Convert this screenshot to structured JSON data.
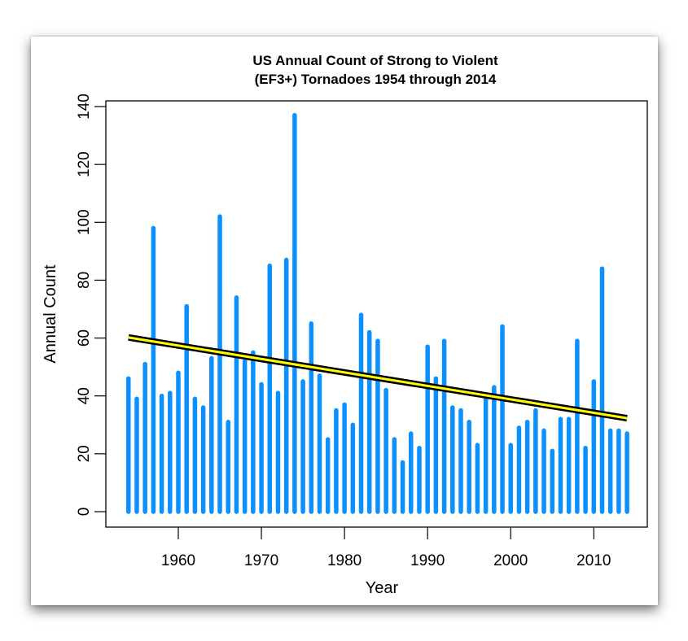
{
  "chart_data": {
    "type": "bar",
    "title": [
      "US Annual Count of Strong to Violent",
      "(EF3+) Tornadoes 1954 through 2014"
    ],
    "xlabel": "Year",
    "ylabel": "Annual Count",
    "xlim": [
      1952,
      2016
    ],
    "ylim": [
      -4,
      143
    ],
    "x_ticks": [
      1960,
      1970,
      1980,
      1990,
      2000,
      2010
    ],
    "y_ticks": [
      0,
      20,
      40,
      60,
      80,
      100,
      120,
      140
    ],
    "grid": false,
    "bar_color": "#0A90FF",
    "x": [
      1954,
      1955,
      1956,
      1957,
      1958,
      1959,
      1960,
      1961,
      1962,
      1963,
      1964,
      1965,
      1966,
      1967,
      1968,
      1969,
      1970,
      1971,
      1972,
      1973,
      1974,
      1975,
      1976,
      1977,
      1978,
      1979,
      1980,
      1981,
      1982,
      1983,
      1984,
      1985,
      1986,
      1987,
      1988,
      1989,
      1990,
      1991,
      1992,
      1993,
      1994,
      1995,
      1996,
      1997,
      1998,
      1999,
      2000,
      2001,
      2002,
      2003,
      2004,
      2005,
      2006,
      2007,
      2008,
      2009,
      2010,
      2011,
      2012,
      2013,
      2014
    ],
    "values": [
      46,
      39,
      51,
      98,
      40,
      41,
      48,
      71,
      39,
      36,
      53,
      102,
      31,
      74,
      52,
      55,
      44,
      85,
      41,
      87,
      137,
      45,
      65,
      47,
      25,
      35,
      37,
      30,
      68,
      62,
      59,
      42,
      25,
      17,
      27,
      22,
      57,
      46,
      59,
      36,
      35,
      31,
      23,
      39,
      43,
      64,
      23,
      29,
      31,
      35,
      28,
      21,
      32,
      32,
      59,
      22,
      45,
      84,
      28,
      28,
      27
    ],
    "trend": {
      "label": "Linear trend",
      "start": {
        "x": 1954,
        "y": 60.2
      },
      "end": {
        "x": 2014,
        "y": 32.3
      },
      "outer_color": "#000000",
      "inner_color": "#FFFF00"
    }
  }
}
